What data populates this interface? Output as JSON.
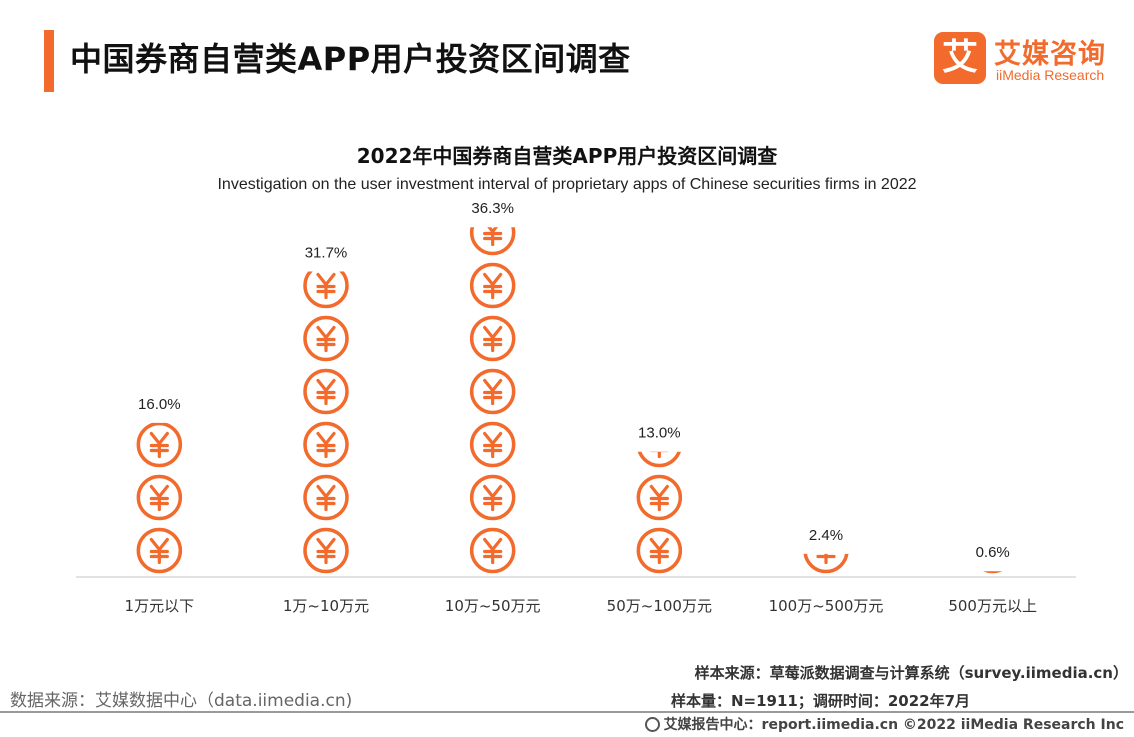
{
  "header": {
    "title": "中国券商自营类APP用户投资区间调查",
    "logo_mark": "艾",
    "logo_cn": "艾媒咨询",
    "logo_en": "iiMedia Research",
    "accent_color": "#f26a2c"
  },
  "chart_data": {
    "type": "bar",
    "title": "2022年中国券商自营类APP用户投资区间调查",
    "subtitle": "Investigation on the user investment interval of proprietary apps of Chinese securities firms in 2022",
    "categories": [
      "1万元以下",
      "1万~10万元",
      "10万~50万元",
      "50万~100万元",
      "100万~500万元",
      "500万元以上"
    ],
    "values": [
      16.0,
      31.7,
      36.3,
      13.0,
      2.4,
      0.6
    ],
    "value_labels": [
      "16.0%",
      "31.7%",
      "36.3%",
      "13.0%",
      "2.4%",
      "0.6%"
    ],
    "unit": "%",
    "marker": "yuan-coin-icon",
    "color": "#f26a2c",
    "grid": false
  },
  "footer": {
    "source_left": "数据来源：艾媒数据中心（data.iimedia.cn)",
    "sample_source": "样本来源：草莓派数据调查与计算系统（survey.iimedia.cn）",
    "sample_size": "样本量：N=1911；调研时间：2022年7月",
    "copyright": "艾媒报告中心：report.iimedia.cn  ©2022  iiMedia Research  Inc"
  }
}
